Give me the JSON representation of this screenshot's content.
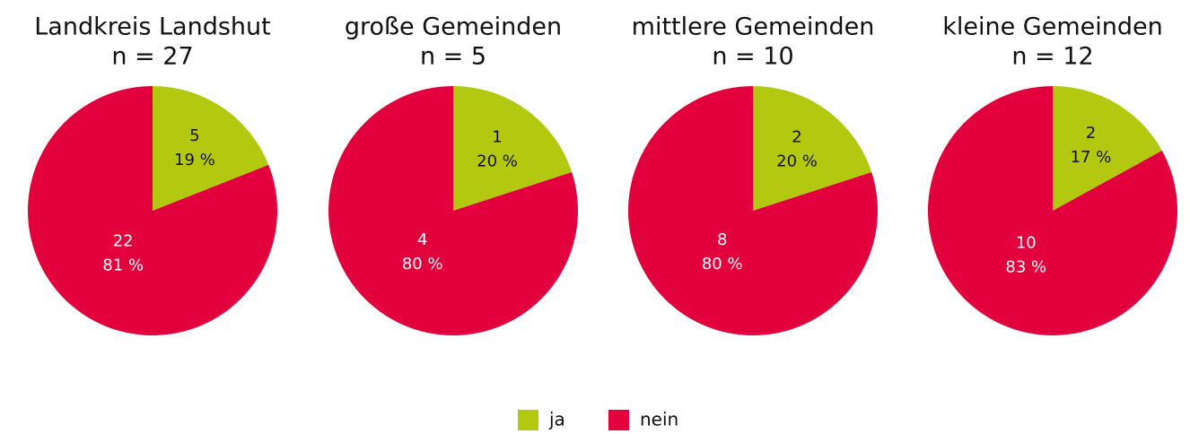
{
  "legend": {
    "labels": [
      "ja",
      "nein"
    ],
    "colors": [
      "#b3c90f",
      "#e2003d"
    ]
  },
  "chart_data": [
    {
      "type": "pie",
      "title": "Landkreis Landshut",
      "subtitle": "n = 27",
      "values": [
        19,
        81
      ],
      "value_labels": [
        "19 %",
        "81 %"
      ],
      "counts": [
        5,
        22
      ]
    },
    {
      "type": "pie",
      "title": "große Gemeinden",
      "subtitle": "n = 5",
      "values": [
        20,
        80
      ],
      "value_labels": [
        "20 %",
        "80 %"
      ],
      "counts": [
        1,
        4
      ]
    },
    {
      "type": "pie",
      "title": "mittlere Gemeinden",
      "subtitle": "n = 10",
      "values": [
        20,
        80
      ],
      "value_labels": [
        "20 %",
        "80 %"
      ],
      "counts": [
        2,
        8
      ]
    },
    {
      "type": "pie",
      "title": "kleine Gemeinden",
      "subtitle": "n = 12",
      "values": [
        17,
        83
      ],
      "value_labels": [
        "17 %",
        "83 %"
      ],
      "counts": [
        2,
        10
      ]
    }
  ]
}
